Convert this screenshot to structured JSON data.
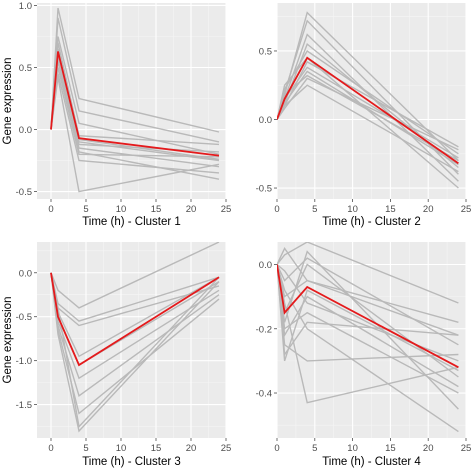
{
  "colors": {
    "panel_background": "#ebebeb",
    "grid_major": "#ffffff",
    "grid_minor": "#f5f5f5",
    "gene_lines": "#b9b9b9",
    "centroid_line": "#e41a1c",
    "axis_text": "#4d4d4d",
    "title_text": "#000000"
  },
  "chart_data": [
    {
      "type": "line",
      "xlabel": "Time (h) - Cluster 1",
      "ylabel": "Gene expression",
      "xlim": [
        -2,
        25
      ],
      "ylim": [
        -0.56,
        1.02
      ],
      "xticks": [
        0,
        5,
        10,
        15,
        20,
        25
      ],
      "xtick_labels": [
        "0",
        "5",
        "10",
        "15",
        "20",
        "25"
      ],
      "yticks": [
        -0.5,
        0,
        0.5,
        1
      ],
      "ytick_labels": [
        "-0.5",
        "0.0",
        "0.5",
        "1.0"
      ],
      "grid": true,
      "x": [
        0,
        1,
        4,
        24
      ],
      "gene_series": [
        [
          0,
          0.98,
          0.25,
          -0.02
        ],
        [
          0,
          0.9,
          0.15,
          -0.1
        ],
        [
          0,
          0.75,
          0.05,
          -0.2
        ],
        [
          0,
          0.7,
          -0.05,
          -0.12
        ],
        [
          0,
          0.6,
          -0.1,
          -0.25
        ],
        [
          0,
          0.55,
          -0.15,
          -0.3
        ],
        [
          0,
          0.5,
          -0.12,
          -0.18
        ],
        [
          0,
          0.5,
          -0.2,
          -0.22
        ],
        [
          0,
          0.45,
          -0.25,
          -0.35
        ],
        [
          0,
          0.42,
          -0.5,
          -0.28
        ],
        [
          0,
          0.6,
          -0.18,
          -0.4
        ],
        [
          0,
          0.65,
          -0.08,
          -0.24
        ]
      ],
      "centroid": [
        0,
        0.63,
        -0.07,
        -0.21
      ]
    },
    {
      "type": "line",
      "xlabel": "Time (h) - Cluster 2",
      "ylabel": "",
      "xlim": [
        0,
        25
      ],
      "ylim": [
        -0.58,
        0.85
      ],
      "xticks": [
        0,
        5,
        10,
        15,
        20,
        25
      ],
      "xtick_labels": [
        "0",
        "5",
        "10",
        "15",
        "20",
        "25"
      ],
      "yticks": [
        -0.5,
        0,
        0.5
      ],
      "ytick_labels": [
        "-0.5",
        "0.0",
        "0.5"
      ],
      "grid": true,
      "x": [
        0,
        1,
        4,
        24
      ],
      "gene_series": [
        [
          0,
          0.18,
          0.78,
          -0.3
        ],
        [
          0,
          0.2,
          0.72,
          -0.4
        ],
        [
          0,
          0.15,
          0.62,
          -0.45
        ],
        [
          0,
          0.12,
          0.55,
          -0.35
        ],
        [
          0,
          0.22,
          0.5,
          -0.25
        ],
        [
          0,
          0.25,
          0.45,
          -0.5
        ],
        [
          0,
          0.1,
          0.42,
          -0.2
        ],
        [
          0,
          0.15,
          0.38,
          -0.28
        ],
        [
          0,
          0.12,
          0.35,
          -0.33
        ],
        [
          0,
          0.18,
          0.32,
          -0.3
        ],
        [
          0,
          0.08,
          0.3,
          -0.22
        ],
        [
          0,
          0.1,
          0.25,
          -0.38
        ]
      ],
      "centroid": [
        0,
        0.15,
        0.45,
        -0.32
      ]
    },
    {
      "type": "line",
      "xlabel": "Time (h) - Cluster 3",
      "ylabel": "Gene expression",
      "xlim": [
        -2,
        25
      ],
      "ylim": [
        -1.88,
        0.35
      ],
      "xticks": [
        0,
        5,
        10,
        15,
        20,
        25
      ],
      "xtick_labels": [
        "0",
        "5",
        "10",
        "15",
        "20",
        "25"
      ],
      "yticks": [
        -1.5,
        -1,
        -0.5,
        0
      ],
      "ytick_labels": [
        "-1.5",
        "-1.0",
        "-0.5",
        "0.0"
      ],
      "grid": true,
      "x": [
        0,
        1,
        4,
        24
      ],
      "gene_series": [
        [
          0,
          -0.2,
          -0.4,
          0.35
        ],
        [
          0,
          -0.35,
          -0.55,
          -0.05
        ],
        [
          0,
          -0.4,
          -0.6,
          -0.15
        ],
        [
          0,
          -0.45,
          -0.95,
          -0.05
        ],
        [
          0,
          -0.5,
          -1.05,
          -0.1
        ],
        [
          0,
          -0.55,
          -1.2,
          -0.2
        ],
        [
          0,
          -0.6,
          -1.4,
          -0.25
        ],
        [
          0,
          -0.65,
          -1.6,
          -0.3
        ],
        [
          0,
          -0.7,
          -1.8,
          -0.1
        ],
        [
          0,
          -0.4,
          -1.75,
          -0.05
        ]
      ],
      "centroid": [
        0,
        -0.5,
        -1.05,
        -0.05
      ]
    },
    {
      "type": "line",
      "xlabel": "Time (h) - Cluster 4",
      "ylabel": "",
      "xlim": [
        0,
        25
      ],
      "ylim": [
        -0.54,
        0.07
      ],
      "xticks": [
        0,
        5,
        10,
        15,
        20,
        25
      ],
      "xtick_labels": [
        "0",
        "5",
        "10",
        "15",
        "20",
        "25"
      ],
      "yticks": [
        -0.4,
        -0.2,
        0
      ],
      "ytick_labels": [
        "-0.4",
        "-0.2",
        "0.0"
      ],
      "grid": true,
      "x": [
        0,
        1,
        4,
        24
      ],
      "gene_series": [
        [
          0,
          0.05,
          -0.05,
          -0.22
        ],
        [
          0,
          0.03,
          0.07,
          -0.12
        ],
        [
          0,
          -0.05,
          0.02,
          -0.25
        ],
        [
          0,
          -0.02,
          -0.12,
          -0.3
        ],
        [
          0,
          -0.1,
          -0.05,
          -0.18
        ],
        [
          0,
          -0.15,
          0.0,
          -0.35
        ],
        [
          0,
          -0.2,
          -0.15,
          -0.4
        ],
        [
          0,
          -0.25,
          -0.3,
          -0.28
        ],
        [
          0,
          -0.3,
          -0.08,
          -0.33
        ],
        [
          0,
          -0.12,
          -0.43,
          -0.32
        ],
        [
          0,
          -0.08,
          -0.2,
          -0.52
        ],
        [
          0,
          -0.22,
          -0.1,
          -0.38
        ],
        [
          0,
          -0.18,
          0.04,
          -0.45
        ],
        [
          0,
          -0.28,
          -0.18,
          -0.22
        ]
      ],
      "centroid": [
        0,
        -0.15,
        -0.07,
        -0.32
      ]
    }
  ]
}
